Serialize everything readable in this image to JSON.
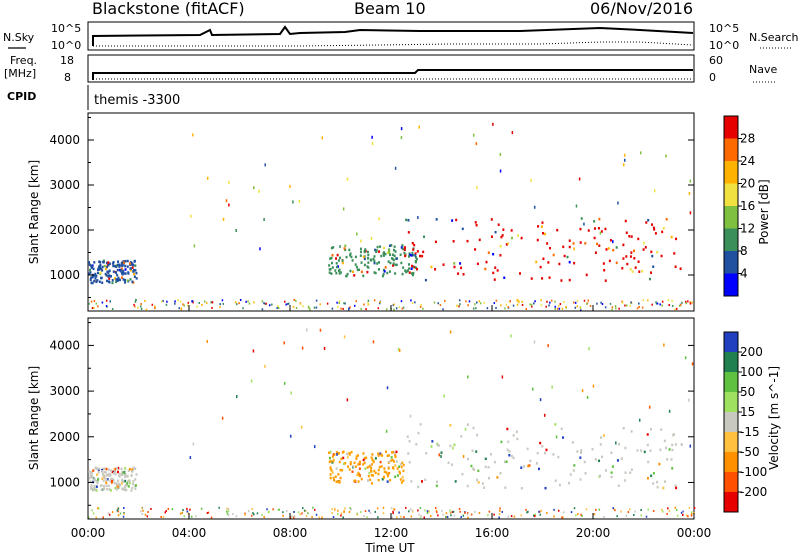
{
  "header": {
    "title": "Blackstone (fitACF)",
    "beam": "Beam 10",
    "date": "06/Nov/2016"
  },
  "top_panels": {
    "nsky_label": "N.Sky",
    "nsky_ticks": [
      "10^5",
      "10^0"
    ],
    "nsearch_label": "N.Search",
    "nsearch_ticks": [
      "10^5",
      "10^0"
    ],
    "freq_label": "Freq.",
    "freq_unit": "[MHz]",
    "freq_ticks": [
      "18",
      "8"
    ],
    "nave_label": "Nave",
    "nave_ticks": [
      "60",
      "0"
    ],
    "cpid_label": "CPID",
    "cpid_value": "themis -3300"
  },
  "chart_data": [
    {
      "type": "heatmap",
      "panel": "power",
      "ylabel": "Slant Range [km]",
      "xlabel": "",
      "ylim": [
        200,
        4600
      ],
      "xlim": [
        0,
        24
      ],
      "yticks": [
        1000,
        2000,
        3000,
        4000
      ],
      "colorbar": {
        "label": "Power [dB]",
        "ticks": [
          "28",
          "24",
          "20",
          "16",
          "12",
          "8",
          "4"
        ],
        "colors": [
          "#e60000",
          "#ff6a00",
          "#ffb300",
          "#f0e040",
          "#80c040",
          "#3a8f5a",
          "#2050a0",
          "#0000ff"
        ]
      },
      "regions": [
        {
          "x": [
            0.0,
            1.9
          ],
          "y": [
            850,
            1350
          ],
          "color": "#2050a0"
        },
        {
          "x": [
            9.5,
            13.0
          ],
          "y": [
            1000,
            1700
          ],
          "color": "#3a8f5a"
        },
        {
          "x": [
            12.5,
            23.5
          ],
          "y": [
            900,
            2300
          ],
          "color": "#e60000"
        }
      ]
    },
    {
      "type": "heatmap",
      "panel": "velocity",
      "ylabel": "Slant Range [km]",
      "xlabel": "Time UT",
      "ylim": [
        200,
        4600
      ],
      "xlim": [
        0,
        24
      ],
      "yticks": [
        1000,
        2000,
        3000,
        4000
      ],
      "xticks": [
        "00:00",
        "04:00",
        "08:00",
        "12:00",
        "16:00",
        "20:00",
        "00:00"
      ],
      "colorbar": {
        "label": "Velocity [m s^-1]",
        "ticks": [
          "200",
          "100",
          "50",
          "15",
          "-15",
          "-50",
          "-100",
          "-200"
        ],
        "colors": [
          "#2040c0",
          "#208050",
          "#60c040",
          "#a0e060",
          "#c8c8c0",
          "#ffc040",
          "#ff9000",
          "#ff5000",
          "#e60000"
        ]
      },
      "regions": [
        {
          "x": [
            0.0,
            1.9
          ],
          "y": [
            850,
            1350
          ],
          "color": "#c8c8c0"
        },
        {
          "x": [
            9.5,
            12.5
          ],
          "y": [
            1000,
            1700
          ],
          "color": "#ffa000"
        },
        {
          "x": [
            12.5,
            23.5
          ],
          "y": [
            900,
            2300
          ],
          "color": "#c8c8c0"
        }
      ]
    }
  ]
}
